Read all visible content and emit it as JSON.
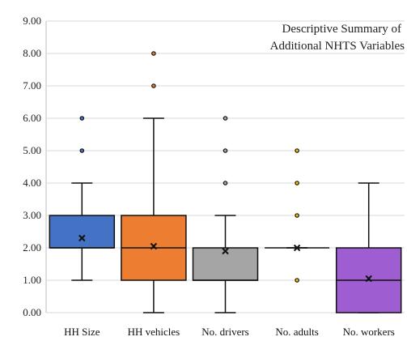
{
  "chart_data": {
    "type": "boxplot",
    "title_lines": [
      "Descriptive Summary of",
      "Additional NHTS Variables"
    ],
    "xlabel": "",
    "ylabel": "",
    "ylim": [
      0,
      9
    ],
    "ytick_labels": [
      "0.00",
      "1.00",
      "2.00",
      "3.00",
      "4.00",
      "5.00",
      "6.00",
      "7.00",
      "8.00",
      "9.00"
    ],
    "grid": true,
    "categories": [
      "HH Size",
      "HH vehicles",
      "No. drivers",
      "No. adults",
      "No. workers"
    ],
    "boxes": [
      {
        "name": "HH Size",
        "color": "#4472C4",
        "min": 1,
        "q1": 2,
        "median": 2,
        "q3": 3,
        "max": 4,
        "mean": 2.3,
        "outliers": [
          5,
          6
        ]
      },
      {
        "name": "HH vehicles",
        "color": "#ED7D31",
        "min": 0,
        "q1": 1,
        "median": 2,
        "q3": 3,
        "max": 6,
        "mean": 2.05,
        "outliers": [
          7,
          8
        ]
      },
      {
        "name": "No. drivers",
        "color": "#A5A5A5",
        "min": 0,
        "q1": 1,
        "median": 1,
        "q3": 2,
        "max": 3,
        "mean": 1.9,
        "outliers": [
          4,
          5,
          6
        ]
      },
      {
        "name": "No. adults",
        "color": "#FFC000",
        "min": 2,
        "q1": 2,
        "median": 2,
        "q3": 2,
        "max": 2,
        "mean": 2.0,
        "outliers": [
          1,
          3,
          4,
          5
        ]
      },
      {
        "name": "No. workers",
        "color": "#9E5ED1",
        "min": 0,
        "q1": 0,
        "median": 1,
        "q3": 2,
        "max": 4,
        "mean": 1.05,
        "outliers": []
      }
    ]
  }
}
